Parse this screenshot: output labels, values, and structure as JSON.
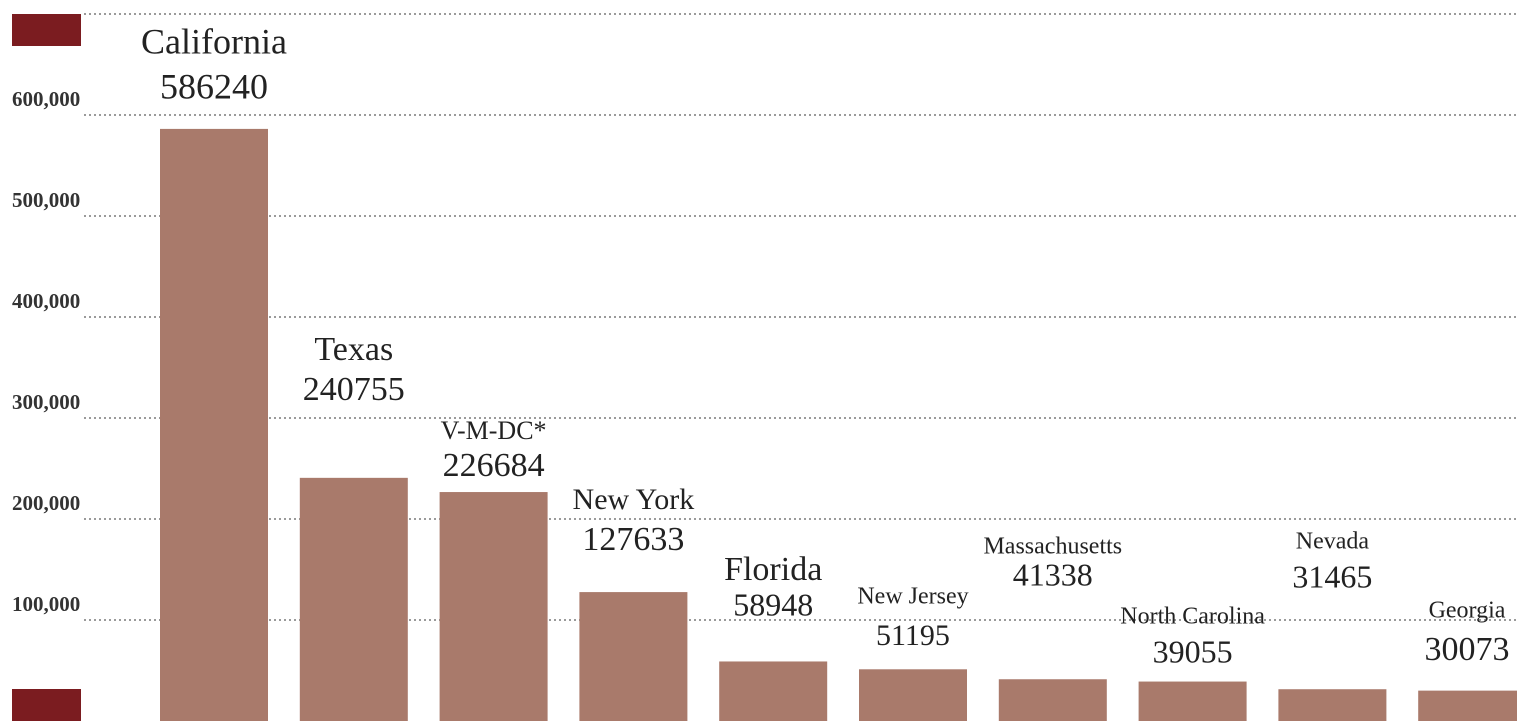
{
  "chart_data": {
    "type": "bar",
    "categories": [
      "California",
      "Texas",
      "V-M-DC*",
      "New York",
      "Florida",
      "New Jersey",
      "Massachusetts",
      "North Carolina",
      "Nevada",
      "Georgia"
    ],
    "values": [
      586240,
      240755,
      226684,
      127633,
      58948,
      51195,
      41338,
      39055,
      31465,
      30073
    ],
    "color": "#a97a6b",
    "ylim": [
      0,
      700000
    ],
    "yticks": [
      {
        "value": 100000,
        "label": "100,000"
      },
      {
        "value": 200000,
        "label": "200,000"
      },
      {
        "value": 300000,
        "label": "300,000"
      },
      {
        "value": 400000,
        "label": "400,000"
      },
      {
        "value": 500000,
        "label": "500,000"
      },
      {
        "value": 600000,
        "label": "600,000"
      }
    ],
    "grid": true
  }
}
